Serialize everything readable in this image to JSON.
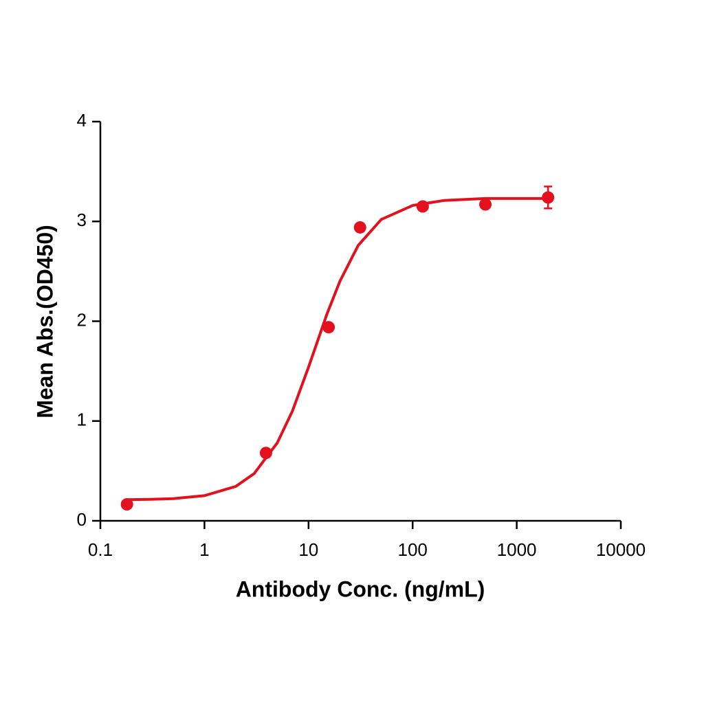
{
  "chart_data": {
    "type": "scatter",
    "x_label": "Antibody Conc. (ng/mL)",
    "y_label": "Mean Abs.(OD450)",
    "xscale": "log",
    "xlim": [
      0.1,
      10000
    ],
    "xticks": [
      0.1,
      1,
      10,
      100,
      1000,
      10000
    ],
    "ylim": [
      0,
      4
    ],
    "yticks": [
      0,
      1,
      2,
      3,
      4
    ],
    "grid": false,
    "color": "#e3101e",
    "series": [
      {
        "x": [
          0.18,
          3.9,
          15.6,
          31.25,
          125,
          500,
          2000
        ],
        "values": [
          0.165,
          0.68,
          1.94,
          2.94,
          3.15,
          3.17,
          3.24
        ],
        "errors": [
          null,
          null,
          null,
          null,
          null,
          null,
          0.11
        ]
      }
    ],
    "fit": {
      "x": [
        0.18,
        0.3,
        0.5,
        1,
        2,
        3,
        5,
        7,
        10,
        15,
        20,
        30,
        50,
        100,
        200,
        500,
        1000,
        2000
      ],
      "values": [
        0.212,
        0.215,
        0.222,
        0.252,
        0.345,
        0.473,
        0.78,
        1.1,
        1.54,
        2.07,
        2.4,
        2.76,
        3.02,
        3.16,
        3.21,
        3.23,
        3.23,
        3.23
      ]
    }
  }
}
